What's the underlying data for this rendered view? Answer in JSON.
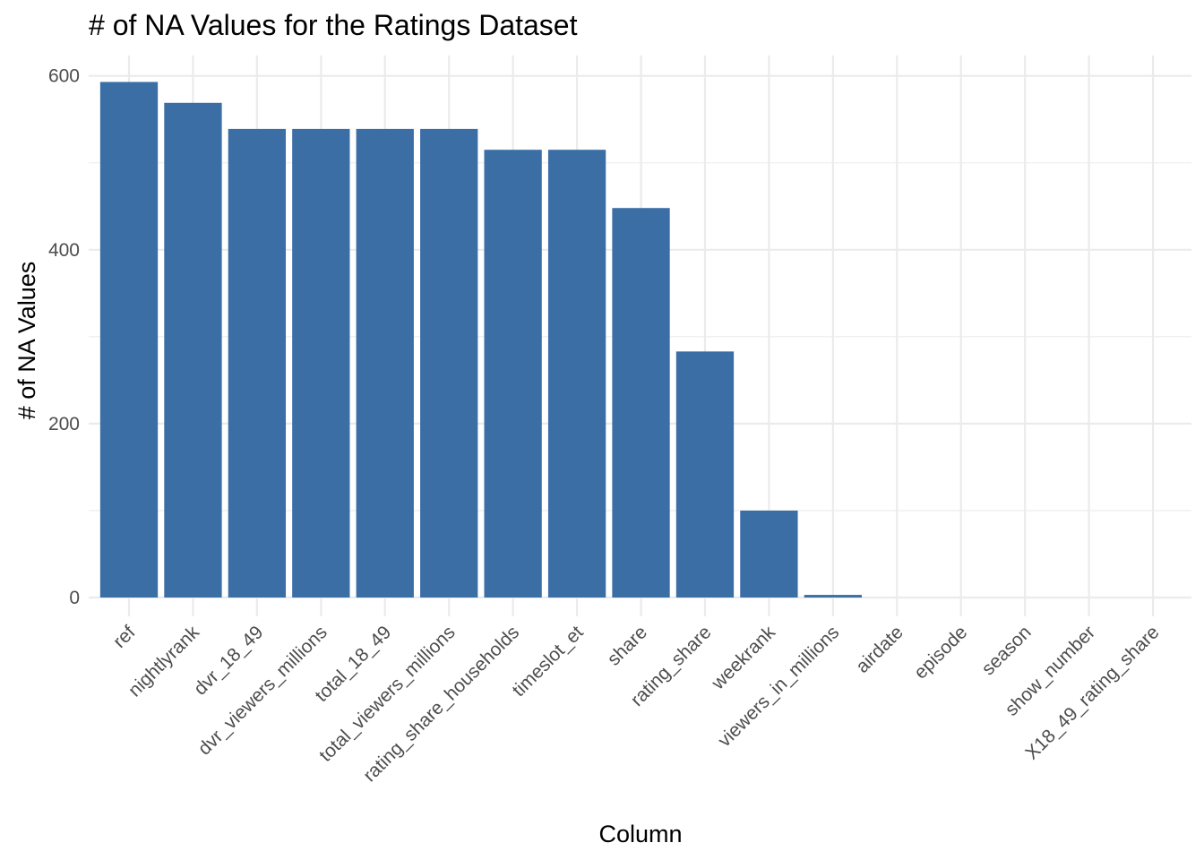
{
  "chart_data": {
    "type": "bar",
    "title": "# of NA Values for the Ratings Dataset",
    "xlabel": "Column",
    "ylabel": "# of NA Values",
    "categories": [
      "ref",
      "nightlyrank",
      "dvr_18_49",
      "dvr_viewers_millions",
      "total_18_49",
      "total_viewers_millions",
      "rating_share_households",
      "timeslot_et",
      "share",
      "rating_share",
      "weekrank",
      "viewers_in_millions",
      "airdate",
      "episode",
      "season",
      "show_number",
      "X18_49_rating_share"
    ],
    "values": [
      593,
      569,
      539,
      539,
      539,
      539,
      515,
      515,
      448,
      283,
      100,
      3,
      0,
      0,
      0,
      0,
      0
    ],
    "ylim": [
      0,
      610
    ],
    "yticks": [
      0,
      200,
      400,
      600
    ],
    "ytick_labels": [
      "0",
      "200",
      "400",
      "600"
    ],
    "grid": true,
    "legend": "none",
    "bar_color": "#3a6ea5"
  }
}
